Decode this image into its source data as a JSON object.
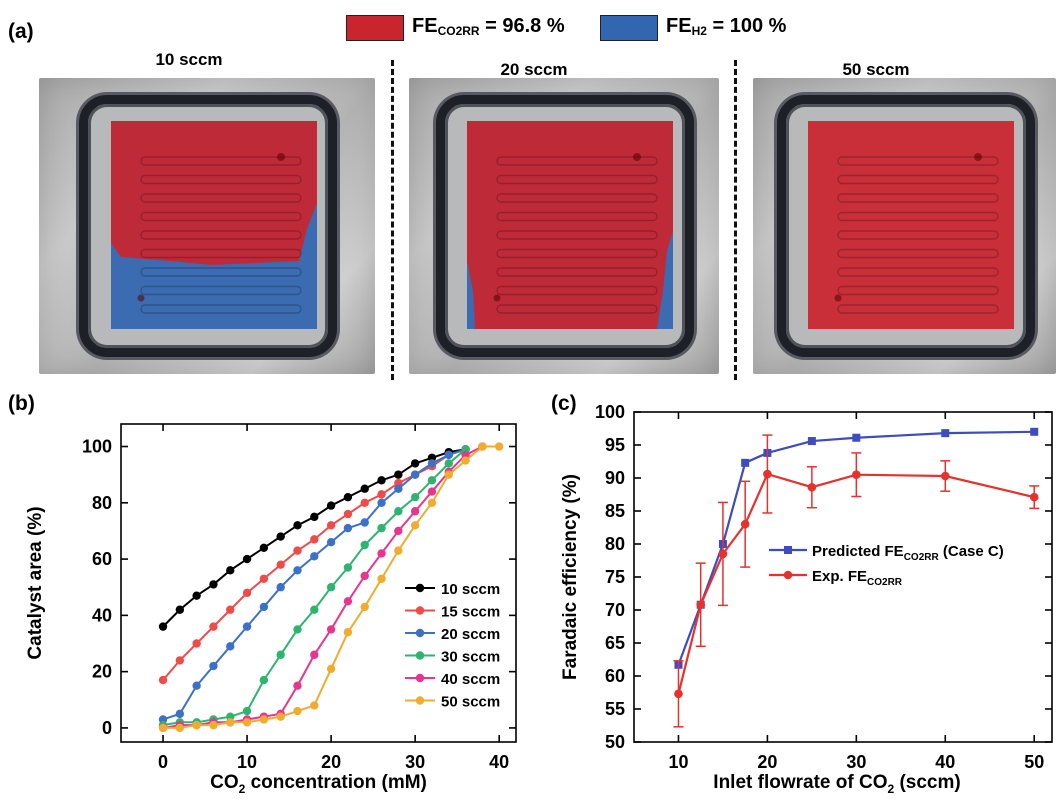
{
  "colors": {
    "co2rr": "#c9252f",
    "h2": "#3266b0",
    "predicted": "#3e4cc0",
    "experimental": "#e5322f",
    "series_b": [
      "#000000",
      "#ef4b4b",
      "#3b72c8",
      "#2db56f",
      "#e6378e",
      "#efac2f"
    ]
  },
  "panel_a": {
    "label": "(a)",
    "legend": [
      {
        "prefix": "FE",
        "sub": "CO2RR",
        "suffix": " = 96.8 %",
        "color_key": "co2rr"
      },
      {
        "prefix": "FE",
        "sub": "H2",
        "suffix": " = 100 %",
        "color_key": "h2"
      }
    ],
    "photos": [
      {
        "title": "10 sccm",
        "co2rr_fraction": 0.7
      },
      {
        "title": "20 sccm",
        "co2rr_fraction": 0.96
      },
      {
        "title": "50 sccm",
        "co2rr_fraction": 1.0
      }
    ]
  },
  "panel_b": {
    "label": "(b)",
    "chart_data": {
      "type": "line",
      "xlabel_main": "CO",
      "xlabel_sub": "2",
      "xlabel_rest": " concentration (mM)",
      "ylabel": "Catalyst  area (%)",
      "xlim": [
        -5,
        42
      ],
      "ylim": [
        -5,
        108
      ],
      "xticks": [
        0,
        10,
        20,
        30,
        40
      ],
      "yticks": [
        0,
        20,
        40,
        60,
        80,
        100
      ],
      "legend_position": "right",
      "series": [
        {
          "name": "10 sccm",
          "x": [
            0,
            2,
            4,
            6,
            8,
            10,
            12,
            14,
            16,
            18,
            20,
            22,
            24,
            26,
            28,
            30,
            32,
            34,
            36
          ],
          "y": [
            36,
            42,
            47,
            51,
            56,
            60,
            64,
            68,
            72,
            75,
            79,
            82,
            85,
            88,
            90,
            94,
            96,
            98,
            99
          ]
        },
        {
          "name": "15 sccm",
          "x": [
            0,
            2,
            4,
            6,
            8,
            10,
            12,
            14,
            16,
            18,
            20,
            22,
            24,
            26,
            28,
            30,
            32,
            34,
            36
          ],
          "y": [
            17,
            24,
            30,
            36,
            42,
            48,
            53,
            58,
            63,
            67,
            72,
            76,
            80,
            83,
            87,
            90,
            93,
            97,
            99
          ]
        },
        {
          "name": "20 sccm",
          "x": [
            0,
            2,
            4,
            6,
            8,
            10,
            12,
            14,
            16,
            18,
            20,
            22,
            24,
            26,
            28,
            30,
            32,
            34,
            36
          ],
          "y": [
            3,
            5,
            15,
            22,
            29,
            36,
            43,
            50,
            56,
            61,
            66,
            71,
            73,
            80,
            85,
            90,
            94,
            97,
            99
          ]
        },
        {
          "name": "30 sccm",
          "x": [
            0,
            2,
            4,
            6,
            8,
            10,
            12,
            14,
            16,
            18,
            20,
            22,
            24,
            26,
            28,
            30,
            32,
            34,
            36
          ],
          "y": [
            1,
            2,
            2,
            3,
            4,
            6,
            17,
            26,
            35,
            42,
            50,
            57,
            65,
            71,
            77,
            82,
            88,
            94,
            99
          ]
        },
        {
          "name": "40 sccm",
          "x": [
            0,
            2,
            4,
            6,
            8,
            10,
            12,
            14,
            16,
            18,
            20,
            22,
            24,
            26,
            28,
            30,
            32,
            34,
            36,
            38
          ],
          "y": [
            0,
            1,
            1,
            2,
            2,
            3,
            4,
            5,
            15,
            26,
            35,
            45,
            54,
            62,
            70,
            77,
            84,
            91,
            97,
            100
          ]
        },
        {
          "name": "50 sccm",
          "x": [
            0,
            2,
            4,
            6,
            8,
            10,
            12,
            14,
            16,
            18,
            20,
            22,
            24,
            26,
            28,
            30,
            32,
            34,
            36,
            38,
            40
          ],
          "y": [
            0,
            0,
            1,
            1,
            2,
            2,
            3,
            4,
            6,
            8,
            21,
            34,
            43,
            53,
            63,
            72,
            80,
            90,
            95,
            100,
            100
          ]
        }
      ]
    }
  },
  "panel_c": {
    "label": "(c)",
    "chart_data": {
      "type": "line",
      "xlabel_main": "Inlet flowrate of CO",
      "xlabel_sub": "2",
      "xlabel_rest": " (sccm)",
      "ylabel": "Faradaic efficiency (%)",
      "xlim": [
        5,
        52
      ],
      "ylim": [
        50,
        100
      ],
      "xticks": [
        10,
        20,
        30,
        40,
        50
      ],
      "yticks": [
        50,
        55,
        60,
        65,
        70,
        75,
        80,
        85,
        90,
        95,
        100
      ],
      "legend_position": "center-right",
      "series": [
        {
          "name_main": "Predicted FE",
          "name_sub": "CO2RR",
          "name_rest": " (Case C)",
          "x": [
            10,
            12.5,
            15,
            17.5,
            20,
            25,
            30,
            40,
            50
          ],
          "y": [
            61.7,
            70.8,
            80.0,
            92.3,
            93.8,
            95.6,
            96.1,
            96.8,
            97.0
          ]
        },
        {
          "name_main": "Exp. FE",
          "name_sub": "CO2RR",
          "name_rest": "",
          "x": [
            10,
            12.5,
            15,
            17.5,
            20,
            25,
            30,
            40,
            50
          ],
          "y": [
            57.3,
            70.8,
            78.5,
            83.0,
            90.6,
            88.6,
            90.5,
            90.3,
            87.1
          ],
          "err": [
            5.0,
            6.3,
            7.8,
            6.5,
            5.9,
            3.1,
            3.3,
            2.3,
            1.7
          ]
        }
      ]
    }
  }
}
